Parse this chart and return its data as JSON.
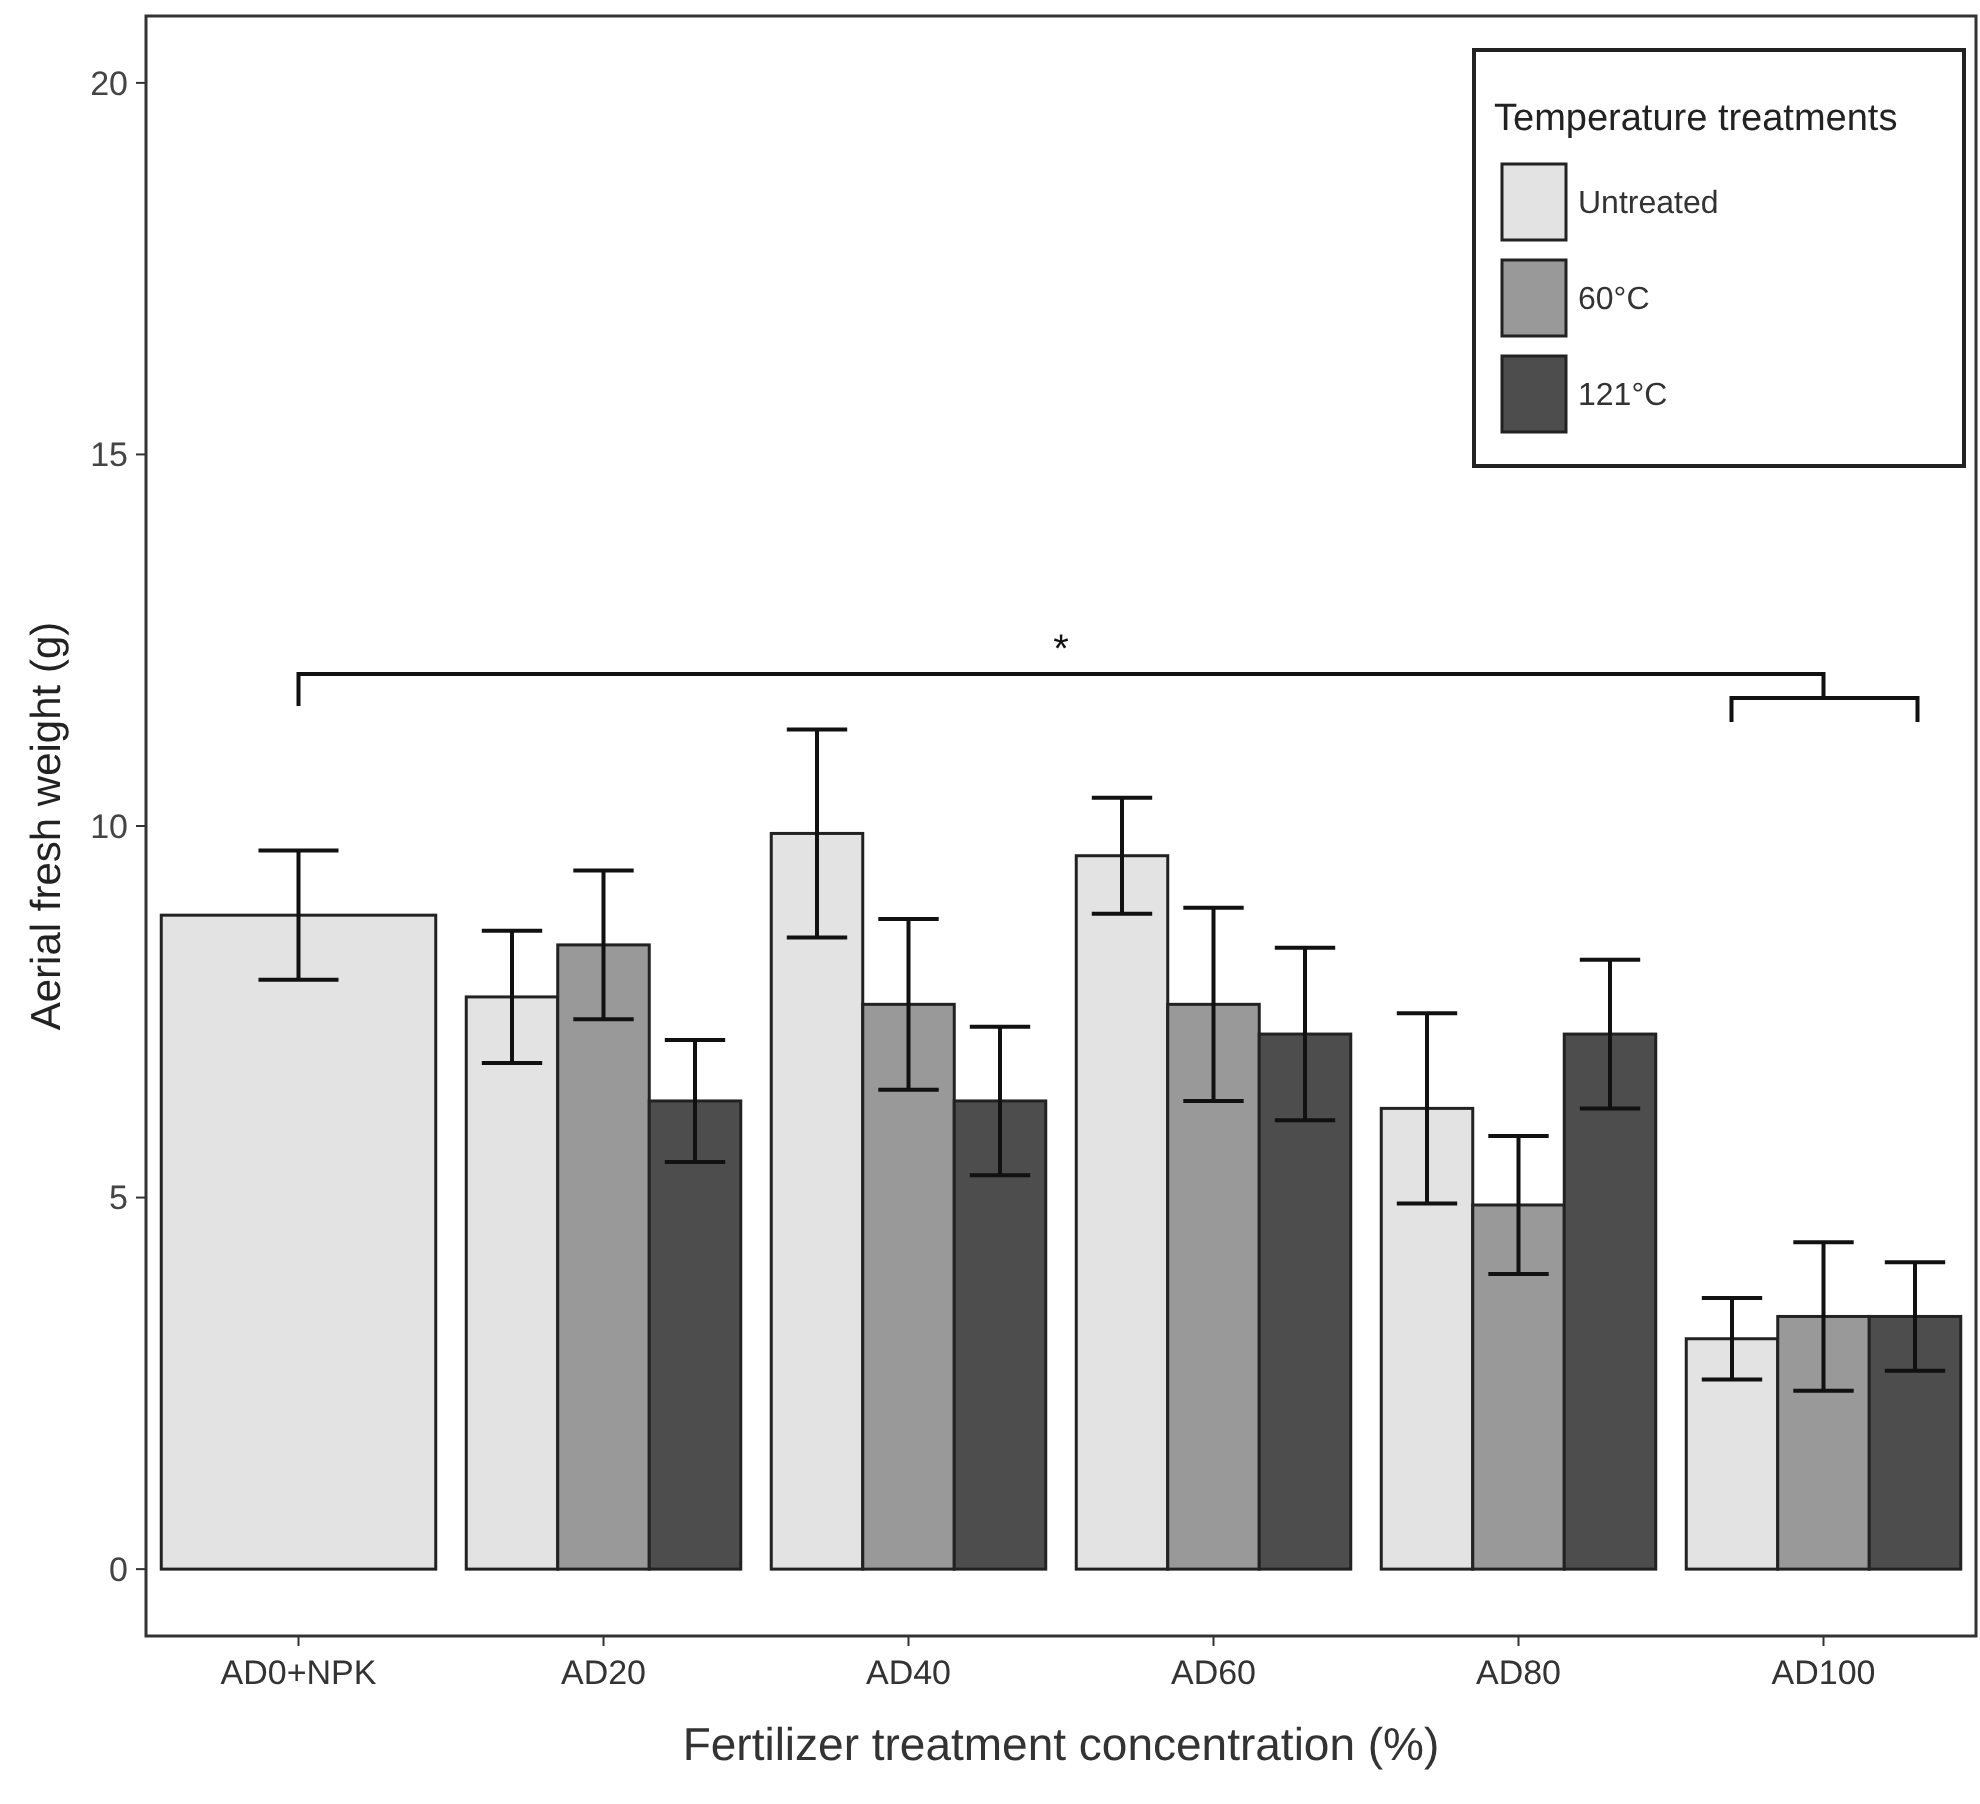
{
  "chart_data": {
    "type": "bar",
    "xlabel": "Fertilizer treatment concentration (%)",
    "ylabel": "Aerial fresh weight (g)",
    "legend_title": "Temperature treatments",
    "categories": [
      "AD0+NPK",
      "AD20",
      "AD40",
      "AD60",
      "AD80",
      "AD100"
    ],
    "series": [
      {
        "name": "Untreated",
        "color": "#e3e3e3",
        "values": [
          8.8,
          7.7,
          9.9,
          9.6,
          6.2,
          3.1
        ],
        "errors": [
          0.87,
          0.89,
          1.4,
          0.78,
          1.28,
          0.55
        ]
      },
      {
        "name": "60°C",
        "color": "#999999",
        "values": [
          null,
          8.4,
          7.6,
          7.6,
          4.9,
          3.4
        ],
        "errors": [
          null,
          1.0,
          1.15,
          1.3,
          0.93,
          1.0
        ]
      },
      {
        "name": "121°C",
        "color": "#4d4d4d",
        "values": [
          null,
          6.3,
          6.3,
          7.2,
          7.2,
          3.4
        ],
        "errors": [
          null,
          0.82,
          1.0,
          1.16,
          1.0,
          0.73
        ]
      }
    ],
    "ylim": [
      -0.9,
      20.9
    ],
    "yticks": [
      0,
      5,
      10,
      15,
      20
    ],
    "grid": false,
    "legend": "top right",
    "annotations": [
      "*"
    ]
  }
}
